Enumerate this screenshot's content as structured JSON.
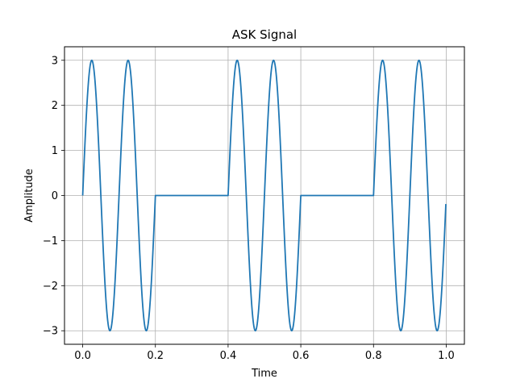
{
  "chart_data": {
    "type": "line",
    "title": "ASK Signal",
    "xlabel": "Time",
    "ylabel": "Amplitude",
    "xlim": [
      -0.05,
      1.05
    ],
    "ylim": [
      -3.3,
      3.3
    ],
    "x_ticks": [
      0.0,
      0.2,
      0.4,
      0.6,
      0.8,
      1.0
    ],
    "x_tick_labels": [
      "0.0",
      "0.2",
      "0.4",
      "0.6",
      "0.8",
      "1.0"
    ],
    "y_ticks": [
      -3,
      -2,
      -1,
      0,
      1,
      2,
      3
    ],
    "y_tick_labels": [
      "−3",
      "−2",
      "−1",
      "0",
      "1",
      "2",
      "3"
    ],
    "grid": true,
    "series": [
      {
        "color": "#1f77b4",
        "amplitude": 3,
        "carrier_frequency_hz": 10,
        "bits": [
          1,
          0,
          1,
          0,
          1
        ],
        "bit_duration": 0.2,
        "t_start": 0.0,
        "t_end": 1.0
      }
    ]
  }
}
